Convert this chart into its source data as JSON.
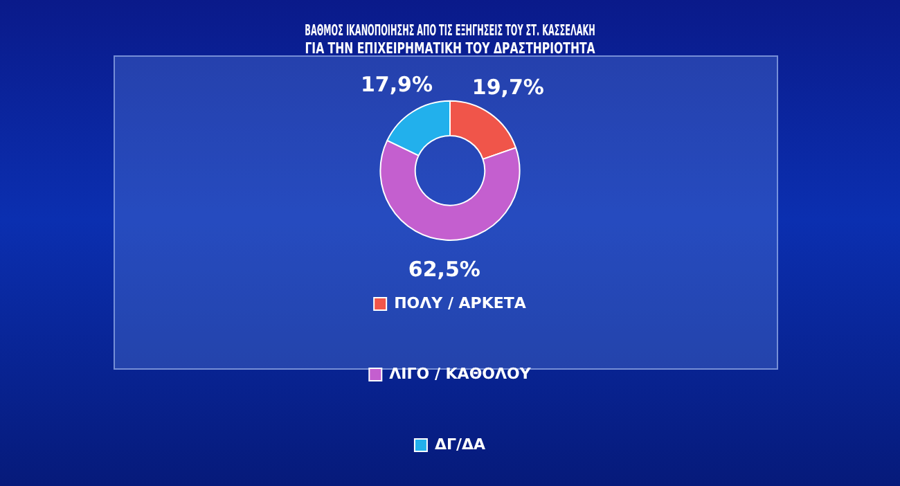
{
  "chart_data": {
    "type": "donut",
    "title": "ΒΑΘΜΟΣ ΙΚΑΝΟΠΟΙΗΣΗΣ ΑΠΟ ΤΙΣ ΕΞΗΓΗΣΕΙΣ ΤΟΥ ΣΤ. ΚΑΣΣΕΛΑΚΗ\nΓΙΑ ΤΗΝ ΕΠΙΧΕΙΡΗΜΑΤΙΚΗ ΤΟΥ ΔΡΑΣΤΗΡΙΟΤΗΤΑ",
    "categories": [
      "ΠΟΛΥ / ΑΡΚΕΤΑ",
      "ΛΙΓΟ / ΚΑΘΟΛΟΥ",
      "ΔΓ/ΔΑ"
    ],
    "values": [
      19.7,
      62.5,
      17.9
    ],
    "value_labels": [
      "19,7%",
      "62,5%",
      "17,9%"
    ],
    "colors": [
      "#f0554a",
      "#c45fcf",
      "#22b0ec"
    ],
    "legend": "bottom"
  }
}
